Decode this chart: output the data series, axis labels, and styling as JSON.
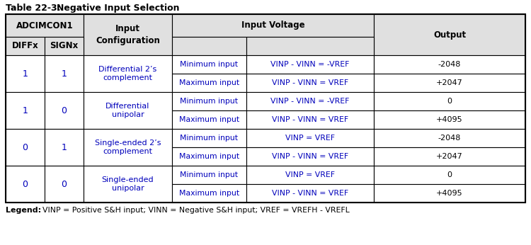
{
  "title_bold": "Table 22-3:",
  "title_normal": "Negative Input Selection",
  "bg_color": "#ffffff",
  "header_bg": "#e0e0e0",
  "blue_color": "#0000bb",
  "text_color": "#000000",
  "legend_bold": "Legend:",
  "legend_text": "   VINP = Positive S&H input; VINN = Negative S&H input; VREF = VREFH - VREFL",
  "rows": [
    {
      "diffx": "1",
      "signx": "1",
      "config": "Differential 2’s\ncomplement",
      "sub": [
        {
          "label": "Minimum input",
          "voltage": "VINP - VINN = -VREF",
          "output": "-2048"
        },
        {
          "label": "Maximum input",
          "voltage": "VINP - VINN = VREF",
          "output": "+2047"
        }
      ]
    },
    {
      "diffx": "1",
      "signx": "0",
      "config": "Differential\nunipolar",
      "sub": [
        {
          "label": "Minimum input",
          "voltage": "VINP - VINN = -VREF",
          "output": "0"
        },
        {
          "label": "Maximum input",
          "voltage": "VINP - VINN = VREF",
          "output": "+4095"
        }
      ]
    },
    {
      "diffx": "0",
      "signx": "1",
      "config": "Single-ended 2’s\ncomplement",
      "sub": [
        {
          "label": "Minimum input",
          "voltage": "VINP = VREF",
          "output": "-2048"
        },
        {
          "label": "Maximum input",
          "voltage": "VINP - VINN = VREF",
          "output": "+2047"
        }
      ]
    },
    {
      "diffx": "0",
      "signx": "0",
      "config": "Single-ended\nunipolar",
      "sub": [
        {
          "label": "Minimum input",
          "voltage": "VINP = VREF",
          "output": "0"
        },
        {
          "label": "Maximum input",
          "voltage": "VINP - VINN = VREF",
          "output": "+4095"
        }
      ]
    }
  ]
}
